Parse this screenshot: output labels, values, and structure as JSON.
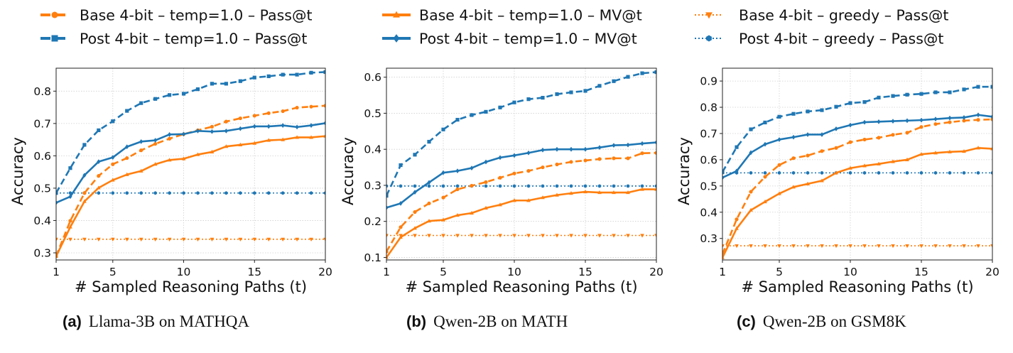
{
  "colors": {
    "base": "#ff7f0e",
    "post": "#1f77b4"
  },
  "legend": [
    {
      "label": "Base 4-bit – temp=1.0 – Pass@t",
      "series": "base_pass"
    },
    {
      "label": "Post 4-bit – temp=1.0 – Pass@t",
      "series": "post_pass"
    },
    {
      "label": "Base 4-bit – temp=1.0 – MV@t",
      "series": "base_mv"
    },
    {
      "label": "Post 4-bit – temp=1.0 – MV@t",
      "series": "post_mv"
    },
    {
      "label": "Base 4-bit – greedy – Pass@t",
      "series": "base_greedy"
    },
    {
      "label": "Post 4-bit – greedy – Pass@t",
      "series": "post_greedy"
    }
  ],
  "series_styles": {
    "base_pass": {
      "color": "base",
      "dash": "dashed",
      "marker": "circle"
    },
    "post_pass": {
      "color": "post",
      "dash": "dashed",
      "marker": "square"
    },
    "base_mv": {
      "color": "base",
      "dash": "solid",
      "marker": "triangle-up"
    },
    "post_mv": {
      "color": "post",
      "dash": "solid",
      "marker": "diamond"
    },
    "base_greedy": {
      "color": "base",
      "dash": "dotted",
      "marker": "triangle-down"
    },
    "post_greedy": {
      "color": "post",
      "dash": "dotted",
      "marker": "hexagon"
    }
  },
  "chart_data": [
    {
      "type": "line",
      "caption_label": "(a)",
      "caption": "Llama-3B on MATHQA",
      "xlabel": "# Sampled Reasoning Paths (t)",
      "ylabel": "Accuracy",
      "xlim": [
        1,
        20
      ],
      "ylim": [
        0.278,
        0.871
      ],
      "xticks": [
        1,
        5,
        10,
        15,
        20
      ],
      "yticks": [
        0.3,
        0.4,
        0.5,
        0.6,
        0.7,
        0.8
      ],
      "grid": true,
      "x": [
        1,
        2,
        3,
        4,
        5,
        6,
        7,
        8,
        9,
        10,
        11,
        12,
        13,
        14,
        15,
        16,
        17,
        18,
        19,
        20
      ],
      "series": {
        "post_pass": [
          0.485,
          0.562,
          0.634,
          0.679,
          0.707,
          0.739,
          0.763,
          0.776,
          0.788,
          0.792,
          0.806,
          0.823,
          0.823,
          0.831,
          0.842,
          0.846,
          0.851,
          0.851,
          0.857,
          0.859
        ],
        "post_mv": [
          0.455,
          0.474,
          0.54,
          0.582,
          0.595,
          0.628,
          0.644,
          0.648,
          0.666,
          0.667,
          0.677,
          0.675,
          0.677,
          0.684,
          0.691,
          0.691,
          0.694,
          0.689,
          0.694,
          0.701
        ],
        "base_pass": [
          0.29,
          0.399,
          0.485,
          0.538,
          0.574,
          0.593,
          0.617,
          0.637,
          0.653,
          0.667,
          0.679,
          0.69,
          0.706,
          0.716,
          0.724,
          0.732,
          0.738,
          0.749,
          0.752,
          0.755
        ],
        "base_mv": [
          0.289,
          0.38,
          0.459,
          0.501,
          0.525,
          0.542,
          0.553,
          0.574,
          0.587,
          0.591,
          0.604,
          0.612,
          0.629,
          0.634,
          0.639,
          0.648,
          0.65,
          0.657,
          0.657,
          0.661
        ],
        "base_greedy": [
          0.342,
          0.342,
          0.342,
          0.342,
          0.342,
          0.342,
          0.342,
          0.342,
          0.342,
          0.342,
          0.342,
          0.342,
          0.342,
          0.342,
          0.342,
          0.342,
          0.342,
          0.342,
          0.342,
          0.342
        ],
        "post_greedy": [
          0.485,
          0.485,
          0.485,
          0.485,
          0.485,
          0.485,
          0.485,
          0.485,
          0.485,
          0.485,
          0.485,
          0.485,
          0.485,
          0.485,
          0.485,
          0.485,
          0.485,
          0.485,
          0.485,
          0.485
        ]
      }
    },
    {
      "type": "line",
      "caption_label": "(b)",
      "caption": "Qwen-2B on MATH",
      "xlabel": "# Sampled Reasoning Paths (t)",
      "ylabel": "Accuracy",
      "xlim": [
        1,
        20
      ],
      "ylim": [
        0.093,
        0.625
      ],
      "xticks": [
        1,
        5,
        10,
        15,
        20
      ],
      "yticks": [
        0.1,
        0.2,
        0.3,
        0.4,
        0.5,
        0.6
      ],
      "grid": true,
      "x": [
        1,
        2,
        3,
        4,
        5,
        6,
        7,
        8,
        9,
        10,
        11,
        12,
        13,
        14,
        15,
        16,
        17,
        18,
        19,
        20
      ],
      "series": {
        "post_pass": [
          0.271,
          0.356,
          0.385,
          0.421,
          0.455,
          0.482,
          0.495,
          0.504,
          0.516,
          0.53,
          0.539,
          0.543,
          0.553,
          0.558,
          0.562,
          0.576,
          0.589,
          0.601,
          0.611,
          0.614
        ],
        "post_mv": [
          0.238,
          0.25,
          0.281,
          0.308,
          0.335,
          0.34,
          0.348,
          0.365,
          0.377,
          0.383,
          0.39,
          0.398,
          0.4,
          0.4,
          0.4,
          0.405,
          0.411,
          0.412,
          0.416,
          0.419
        ],
        "base_pass": [
          0.116,
          0.184,
          0.226,
          0.25,
          0.266,
          0.289,
          0.299,
          0.309,
          0.321,
          0.333,
          0.34,
          0.35,
          0.358,
          0.365,
          0.369,
          0.373,
          0.375,
          0.375,
          0.389,
          0.39
        ],
        "base_mv": [
          0.1,
          0.156,
          0.181,
          0.201,
          0.204,
          0.217,
          0.223,
          0.237,
          0.246,
          0.258,
          0.258,
          0.266,
          0.273,
          0.278,
          0.282,
          0.28,
          0.28,
          0.28,
          0.289,
          0.289
        ],
        "base_greedy": [
          0.161,
          0.161,
          0.161,
          0.161,
          0.161,
          0.161,
          0.161,
          0.161,
          0.161,
          0.161,
          0.161,
          0.161,
          0.161,
          0.161,
          0.161,
          0.161,
          0.161,
          0.161,
          0.161,
          0.161
        ],
        "post_greedy": [
          0.298,
          0.298,
          0.298,
          0.298,
          0.298,
          0.298,
          0.298,
          0.298,
          0.298,
          0.298,
          0.298,
          0.298,
          0.298,
          0.298,
          0.298,
          0.298,
          0.298,
          0.298,
          0.298,
          0.298
        ]
      }
    },
    {
      "type": "line",
      "caption_label": "(c)",
      "caption": "Qwen-2B on GSM8K",
      "xlabel": "# Sampled Reasoning Paths (t)",
      "ylabel": "Accuracy",
      "xlim": [
        1,
        20
      ],
      "ylim": [
        0.218,
        0.949
      ],
      "xticks": [
        1,
        5,
        10,
        15,
        20
      ],
      "yticks": [
        0.3,
        0.4,
        0.5,
        0.6,
        0.7,
        0.8,
        0.9
      ],
      "grid": true,
      "x": [
        1,
        2,
        3,
        4,
        5,
        6,
        7,
        8,
        9,
        10,
        11,
        12,
        13,
        14,
        15,
        16,
        17,
        18,
        19,
        20
      ],
      "series": {
        "post_pass": [
          0.553,
          0.648,
          0.716,
          0.742,
          0.764,
          0.775,
          0.784,
          0.789,
          0.802,
          0.816,
          0.82,
          0.837,
          0.843,
          0.848,
          0.851,
          0.857,
          0.857,
          0.868,
          0.878,
          0.878
        ],
        "post_mv": [
          0.532,
          0.557,
          0.627,
          0.659,
          0.677,
          0.686,
          0.696,
          0.696,
          0.718,
          0.732,
          0.743,
          0.745,
          0.747,
          0.749,
          0.751,
          0.755,
          0.759,
          0.761,
          0.771,
          0.764
        ],
        "base_pass": [
          0.24,
          0.373,
          0.478,
          0.535,
          0.58,
          0.606,
          0.616,
          0.633,
          0.645,
          0.667,
          0.677,
          0.684,
          0.695,
          0.703,
          0.725,
          0.736,
          0.743,
          0.749,
          0.752,
          0.754
        ],
        "base_mv": [
          0.227,
          0.338,
          0.408,
          0.44,
          0.471,
          0.496,
          0.508,
          0.52,
          0.55,
          0.568,
          0.577,
          0.584,
          0.593,
          0.6,
          0.621,
          0.626,
          0.63,
          0.632,
          0.645,
          0.642
        ],
        "base_greedy": [
          0.272,
          0.272,
          0.272,
          0.272,
          0.272,
          0.272,
          0.272,
          0.272,
          0.272,
          0.272,
          0.272,
          0.272,
          0.272,
          0.272,
          0.272,
          0.272,
          0.272,
          0.272,
          0.272,
          0.272
        ],
        "post_greedy": [
          0.55,
          0.55,
          0.55,
          0.55,
          0.55,
          0.55,
          0.55,
          0.55,
          0.55,
          0.55,
          0.55,
          0.55,
          0.55,
          0.55,
          0.55,
          0.55,
          0.55,
          0.55,
          0.55,
          0.55
        ]
      }
    }
  ]
}
